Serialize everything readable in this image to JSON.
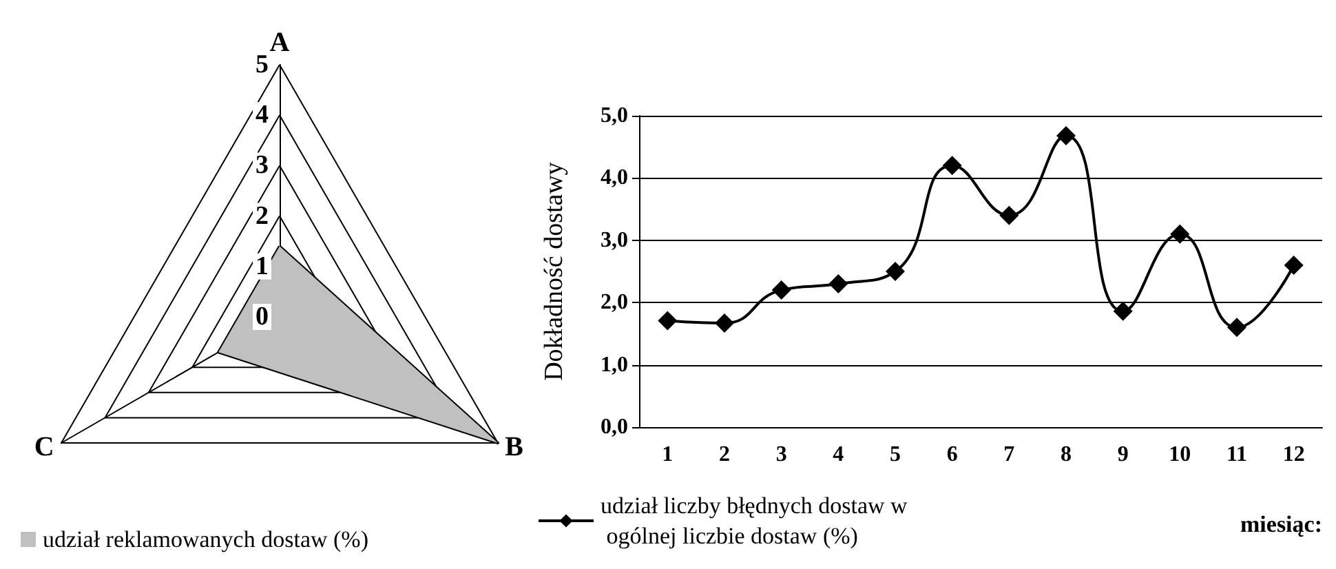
{
  "chart_data": [
    {
      "type": "radar",
      "categories": [
        "A",
        "B",
        "C"
      ],
      "ylim": [
        0,
        5
      ],
      "yticks": [
        0,
        1,
        2,
        3,
        4,
        5
      ],
      "legend": "bottom left",
      "series": [
        {
          "name": "udział reklamowanych dostaw (%)",
          "color": "#c0c0c0",
          "values": [
            1.4,
            5,
            1.4
          ]
        }
      ]
    },
    {
      "type": "line",
      "categories": [
        "1",
        "2",
        "3",
        "4",
        "5",
        "6",
        "7",
        "8",
        "9",
        "10",
        "11",
        "12"
      ],
      "ylabel": "Dokładność dostawy",
      "xlabel": "miesiąc:",
      "ylim": [
        0,
        5
      ],
      "yticks": [
        {
          "value": 0,
          "label": "0,0"
        },
        {
          "value": 1,
          "label": "1,0"
        },
        {
          "value": 2,
          "label": "2,0"
        },
        {
          "value": 3,
          "label": "3,0"
        },
        {
          "value": 4,
          "label": "4,0"
        },
        {
          "value": 5,
          "label": "5,0"
        }
      ],
      "grid": "y",
      "legend": "bottom",
      "marker": "diamond",
      "line_style": "solid",
      "series": [
        {
          "name": "udział liczby błędnych dostaw w ogólnej liczbie dostaw (%)",
          "color": "#000000",
          "values": [
            1.71,
            1.67,
            2.2,
            2.3,
            2.5,
            4.2,
            3.4,
            4.68,
            1.86,
            3.1,
            1.6,
            2.6
          ]
        }
      ]
    }
  ]
}
